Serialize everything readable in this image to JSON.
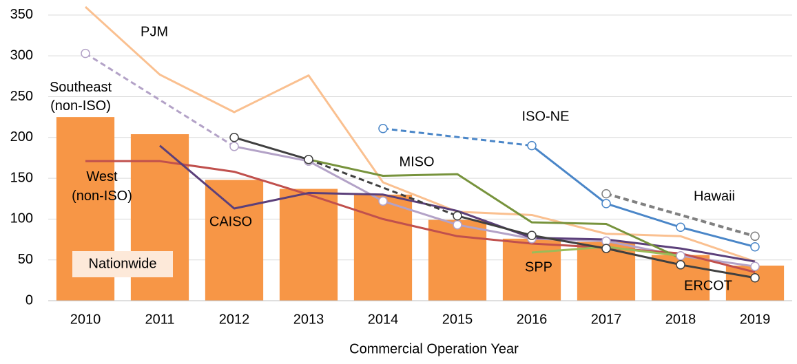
{
  "chart_data": {
    "type": "bar-line",
    "x_label": "Commercial Operation Year",
    "categories": [
      "2010",
      "2011",
      "2012",
      "2013",
      "2014",
      "2015",
      "2016",
      "2017",
      "2018",
      "2019"
    ],
    "ylim": [
      0,
      360
    ],
    "yticks": [
      0,
      50,
      100,
      150,
      200,
      250,
      300,
      350
    ],
    "grid": true,
    "gaps_bridged_dashed": true,
    "series": [
      {
        "name": "Nationwide",
        "type": "bar",
        "color": "#f79646",
        "label_color": "#e46c0a",
        "values": [
          225,
          204,
          148,
          137,
          130,
          99,
          76,
          72,
          56,
          43
        ]
      },
      {
        "name": "PJM",
        "type": "line",
        "color": "#fac090",
        "label_color": "#e46c0a",
        "markers": false,
        "values": [
          360,
          277,
          231,
          276,
          145,
          109,
          105,
          82,
          79,
          48
        ]
      },
      {
        "name": "Southeast (non-ISO)",
        "type": "line",
        "color": "#b3a2c7",
        "label_color": "#8064a2",
        "markers": true,
        "values": [
          303,
          null,
          189,
          171,
          122,
          93,
          76,
          73,
          55,
          42
        ]
      },
      {
        "name": "West (non-ISO)",
        "type": "line",
        "color": "#c0504d",
        "label_color": "#c0504d",
        "markers": false,
        "values": [
          171,
          171,
          158,
          130,
          100,
          79,
          70,
          65,
          58,
          35
        ]
      },
      {
        "name": "CAISO",
        "type": "line",
        "color": "#5b3f7a",
        "label_color": "#5b3f7a",
        "markers": false,
        "values": [
          null,
          190,
          113,
          132,
          130,
          110,
          77,
          75,
          64,
          48
        ]
      },
      {
        "name": "MISO",
        "type": "line",
        "color": "#77933c",
        "label_color": "#77933c",
        "markers": false,
        "values": [
          null,
          null,
          null,
          173,
          153,
          155,
          96,
          94,
          52,
          null
        ]
      },
      {
        "name": "SPP",
        "type": "line",
        "color": "#9bbb59",
        "label_color": "#9bbb59",
        "markers": false,
        "values": [
          null,
          null,
          null,
          null,
          null,
          null,
          59,
          66,
          55,
          null
        ]
      },
      {
        "name": "ERCOT",
        "type": "line",
        "color": "#404040",
        "label_color": "#404040",
        "markers": true,
        "values": [
          null,
          null,
          200,
          173,
          null,
          104,
          80,
          64,
          44,
          28
        ]
      },
      {
        "name": "ISO-NE",
        "type": "line",
        "color": "#4a86c8",
        "label_color": "#4a86c8",
        "markers": true,
        "values": [
          null,
          null,
          null,
          null,
          211,
          null,
          190,
          119,
          90,
          66
        ]
      },
      {
        "name": "Hawaii",
        "type": "line",
        "color": "#808080",
        "label_color": "#808080",
        "markers": true,
        "values": [
          null,
          null,
          null,
          null,
          null,
          null,
          null,
          131,
          null,
          79
        ]
      }
    ]
  }
}
